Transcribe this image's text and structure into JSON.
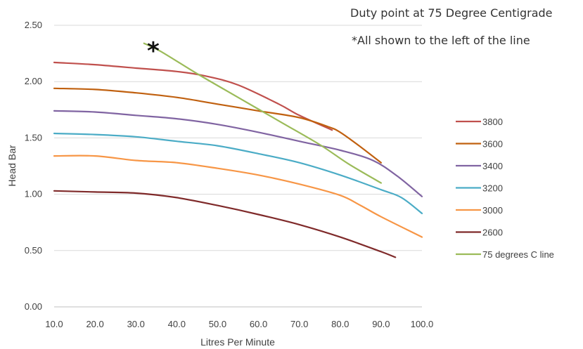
{
  "chart_data": {
    "type": "line",
    "xlabel": "Litres Per Minute",
    "ylabel": "Head Bar",
    "xlim": [
      10,
      100
    ],
    "ylim": [
      0,
      2.5
    ],
    "x_ticks": [
      "10.0",
      "20.0",
      "30.0",
      "40.0",
      "50.0",
      "60.0",
      "70.0",
      "80.0",
      "90.0",
      "100.0"
    ],
    "y_ticks": [
      "0.00",
      "0.50",
      "1.00",
      "1.50",
      "2.00",
      "2.50"
    ],
    "grid": "horizontal",
    "legend_position": "right",
    "annotations": {
      "line1": "Duty point at 75 Degree Centigrade",
      "line2": "*All shown to the left of the line",
      "star": "*"
    },
    "series": [
      {
        "name": "3800",
        "color": "#c0504d",
        "points": [
          [
            10,
            2.17
          ],
          [
            20,
            2.15
          ],
          [
            30,
            2.12
          ],
          [
            40,
            2.09
          ],
          [
            47,
            2.05
          ],
          [
            55,
            1.97
          ],
          [
            65,
            1.8
          ],
          [
            70,
            1.7
          ],
          [
            78,
            1.57
          ]
        ]
      },
      {
        "name": "3600",
        "color": "#c0600f",
        "points": [
          [
            10,
            1.94
          ],
          [
            20,
            1.93
          ],
          [
            30,
            1.9
          ],
          [
            40,
            1.86
          ],
          [
            50,
            1.8
          ],
          [
            60,
            1.74
          ],
          [
            70,
            1.68
          ],
          [
            77,
            1.6
          ],
          [
            80,
            1.55
          ],
          [
            85,
            1.42
          ],
          [
            90,
            1.28
          ]
        ]
      },
      {
        "name": "3400",
        "color": "#8064a2",
        "points": [
          [
            10,
            1.74
          ],
          [
            20,
            1.73
          ],
          [
            30,
            1.7
          ],
          [
            40,
            1.67
          ],
          [
            50,
            1.62
          ],
          [
            60,
            1.55
          ],
          [
            70,
            1.47
          ],
          [
            80,
            1.39
          ],
          [
            88,
            1.3
          ],
          [
            94,
            1.16
          ],
          [
            100,
            0.98
          ]
        ]
      },
      {
        "name": "3200",
        "color": "#4bacc6",
        "points": [
          [
            10,
            1.54
          ],
          [
            20,
            1.53
          ],
          [
            30,
            1.51
          ],
          [
            40,
            1.47
          ],
          [
            50,
            1.43
          ],
          [
            60,
            1.36
          ],
          [
            70,
            1.28
          ],
          [
            80,
            1.17
          ],
          [
            90,
            1.04
          ],
          [
            95,
            0.97
          ],
          [
            100,
            0.83
          ]
        ]
      },
      {
        "name": "3000",
        "color": "#f79646",
        "points": [
          [
            10,
            1.34
          ],
          [
            20,
            1.34
          ],
          [
            30,
            1.3
          ],
          [
            40,
            1.28
          ],
          [
            50,
            1.23
          ],
          [
            60,
            1.17
          ],
          [
            70,
            1.09
          ],
          [
            80,
            0.99
          ],
          [
            85,
            0.9
          ],
          [
            90,
            0.8
          ],
          [
            100,
            0.62
          ]
        ]
      },
      {
        "name": "2600",
        "color": "#7f2a2a",
        "points": [
          [
            10,
            1.03
          ],
          [
            20,
            1.02
          ],
          [
            30,
            1.01
          ],
          [
            40,
            0.97
          ],
          [
            50,
            0.9
          ],
          [
            60,
            0.82
          ],
          [
            70,
            0.73
          ],
          [
            80,
            0.62
          ],
          [
            90,
            0.49
          ],
          [
            93.5,
            0.44
          ]
        ]
      },
      {
        "name": "75 degrees C line",
        "color": "#9bbb59",
        "points": [
          [
            32,
            2.34
          ],
          [
            36,
            2.27
          ],
          [
            45,
            2.07
          ],
          [
            55,
            1.86
          ],
          [
            65,
            1.65
          ],
          [
            75,
            1.44
          ],
          [
            82,
            1.27
          ],
          [
            90,
            1.1
          ]
        ]
      }
    ]
  }
}
